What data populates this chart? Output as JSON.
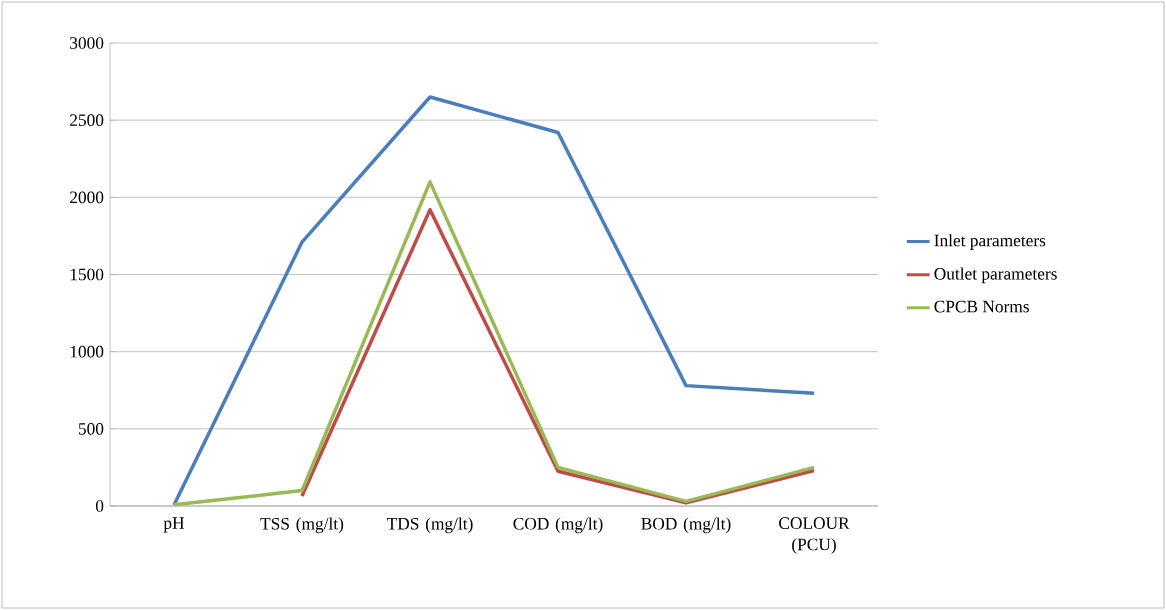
{
  "chart_data": {
    "type": "line",
    "categories": [
      "pH",
      "TSS  (mg/lt)",
      "TDS (mg/lt)",
      "COD (mg/lt)",
      "BOD (mg/lt)",
      "COLOUR (PCU)"
    ],
    "series": [
      {
        "name": "Inlet parameters",
        "color": "#4a7ebb",
        "values": [
          7,
          1710,
          2650,
          2420,
          780,
          730
        ]
      },
      {
        "name": "Outlet parameters",
        "color": "#be4b48",
        "values": [
          null,
          65,
          1920,
          225,
          20,
          230
        ]
      },
      {
        "name": "CPCB Norms",
        "color": "#98b954",
        "values": [
          8,
          100,
          2100,
          250,
          30,
          250
        ]
      }
    ],
    "ylim": [
      0,
      3000
    ],
    "yticks": [
      0,
      500,
      1000,
      1500,
      2000,
      2500,
      3000
    ],
    "grid": "y",
    "legend": "right",
    "marker": "none",
    "line_style": "solid"
  }
}
